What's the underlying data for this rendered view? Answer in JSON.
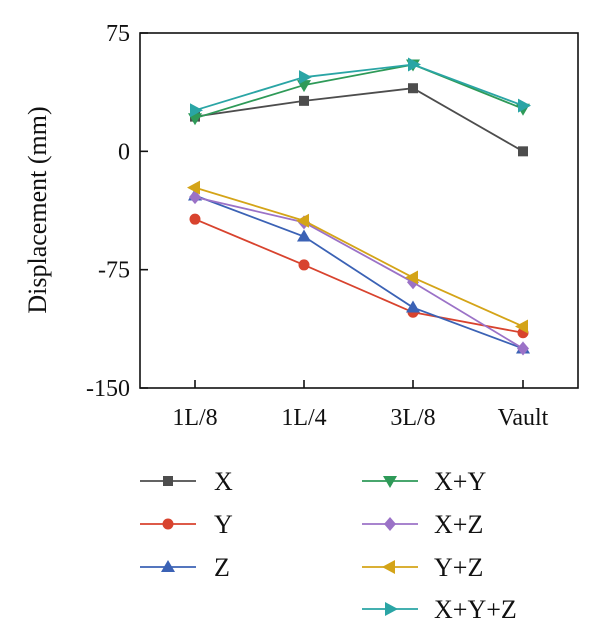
{
  "chart_data": {
    "type": "line",
    "title": "",
    "xlabel": "",
    "ylabel": "Displacement (mm)",
    "categories": [
      "1L/8",
      "1L/4",
      "3L/8",
      "Vault"
    ],
    "ylim": [
      -150,
      75
    ],
    "yticks": [
      "75",
      "0",
      "-75",
      "-150"
    ],
    "grid": false,
    "legend_position": "below, two columns",
    "series": [
      {
        "name": "X",
        "color": "#4d4d4d",
        "marker": "square",
        "values": [
          22,
          32,
          40,
          0
        ]
      },
      {
        "name": "Y",
        "color": "#d8432e",
        "marker": "circle",
        "values": [
          -43,
          -72,
          -102,
          -115
        ]
      },
      {
        "name": "Z",
        "color": "#3b62b5",
        "marker": "triangle-up",
        "values": [
          -28,
          -54,
          -99,
          -125
        ]
      },
      {
        "name": "X+Y",
        "color": "#2e9a58",
        "marker": "triangle-down",
        "values": [
          21,
          42,
          55,
          27
        ]
      },
      {
        "name": "X+Z",
        "color": "#9b72c7",
        "marker": "diamond",
        "values": [
          -29,
          -45,
          -83,
          -125
        ]
      },
      {
        "name": "Y+Z",
        "color": "#d4a418",
        "marker": "triangle-left",
        "values": [
          -23,
          -44,
          -80,
          -111
        ]
      },
      {
        "name": "X+Y+Z",
        "color": "#2aa5a5",
        "marker": "triangle-right",
        "values": [
          26,
          47,
          55,
          29
        ]
      }
    ]
  }
}
